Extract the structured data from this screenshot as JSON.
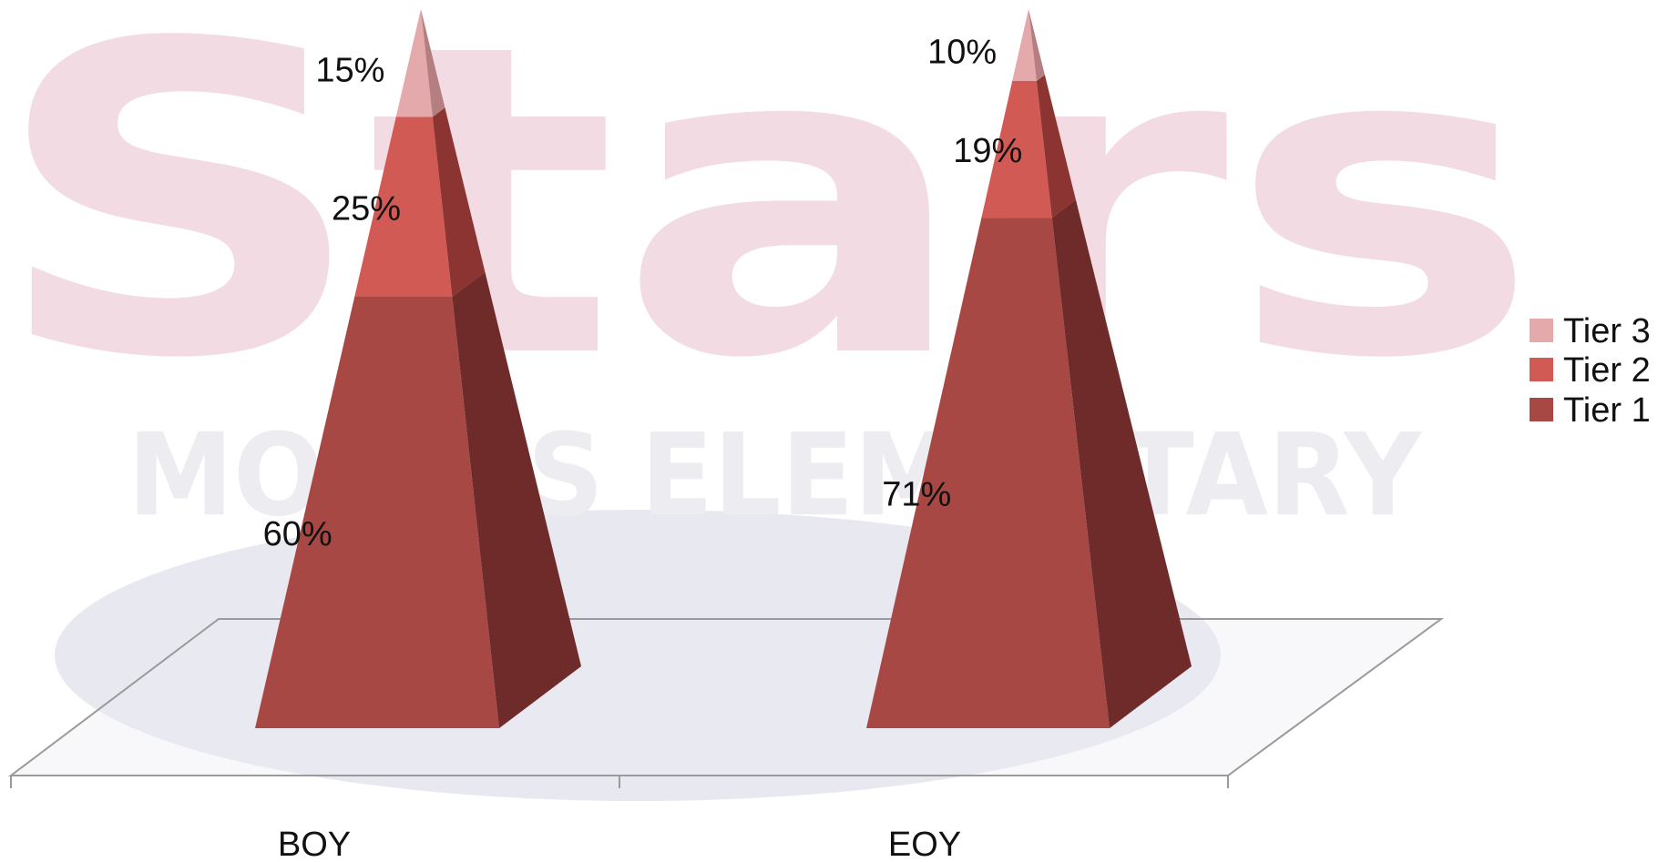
{
  "background": {
    "watermark_big": "Stars",
    "watermark_small": "MORRIS ELEMENTARY",
    "watermark_color": "#f2dbe3",
    "watermark_small_color": "#ececf1",
    "ground_color": "#e9e9f2"
  },
  "colors": {
    "tier1": "#a84844",
    "tier1_side": "#6e2b2a",
    "tier2": "#d25a55",
    "tier2_side": "#8c3431",
    "tier3": "#e3a9ab",
    "tier3_side": "#b57f81",
    "floor_line": "#9a9a9a"
  },
  "chart_data": {
    "type": "bar",
    "subtype": "stacked-100-3d-pyramid",
    "categories": [
      "BOY",
      "EOY"
    ],
    "series": [
      {
        "name": "Tier 1",
        "values": [
          60,
          71
        ],
        "labels": [
          "60%",
          "71%"
        ]
      },
      {
        "name": "Tier 2",
        "values": [
          25,
          19
        ],
        "labels": [
          "25%",
          "19%"
        ]
      },
      {
        "name": "Tier 3",
        "values": [
          15,
          10
        ],
        "labels": [
          "15%",
          "10%"
        ]
      }
    ],
    "ylim": [
      0,
      100
    ],
    "grid": false,
    "legend": {
      "position": "right",
      "entries": [
        "Tier 3",
        "Tier 2",
        "Tier 1"
      ]
    }
  }
}
